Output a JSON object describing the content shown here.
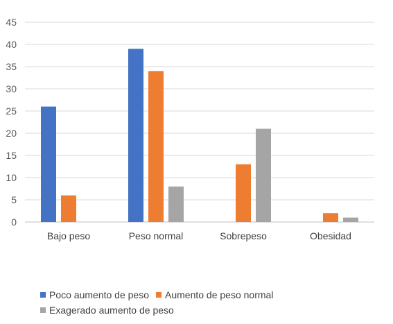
{
  "chart_data": {
    "type": "bar",
    "categories": [
      "Bajo peso",
      "Peso normal",
      "Sobrepeso",
      "Obesidad"
    ],
    "series": [
      {
        "name": "Poco aumento de peso",
        "values": [
          26,
          39,
          0,
          0
        ],
        "color": "#4472C4"
      },
      {
        "name": "Aumento de peso normal",
        "values": [
          6,
          34,
          13,
          2
        ],
        "color": "#ED7D31"
      },
      {
        "name": "Exagerado aumento de peso",
        "values": [
          0,
          8,
          21,
          1
        ],
        "color": "#A5A5A5"
      }
    ],
    "ylim": [
      0,
      45
    ],
    "yticks": [
      0,
      5,
      10,
      15,
      20,
      25,
      30,
      35,
      40,
      45
    ],
    "grid": true,
    "legend_position": "bottom",
    "xlabel": "",
    "ylabel": "",
    "title": ""
  }
}
